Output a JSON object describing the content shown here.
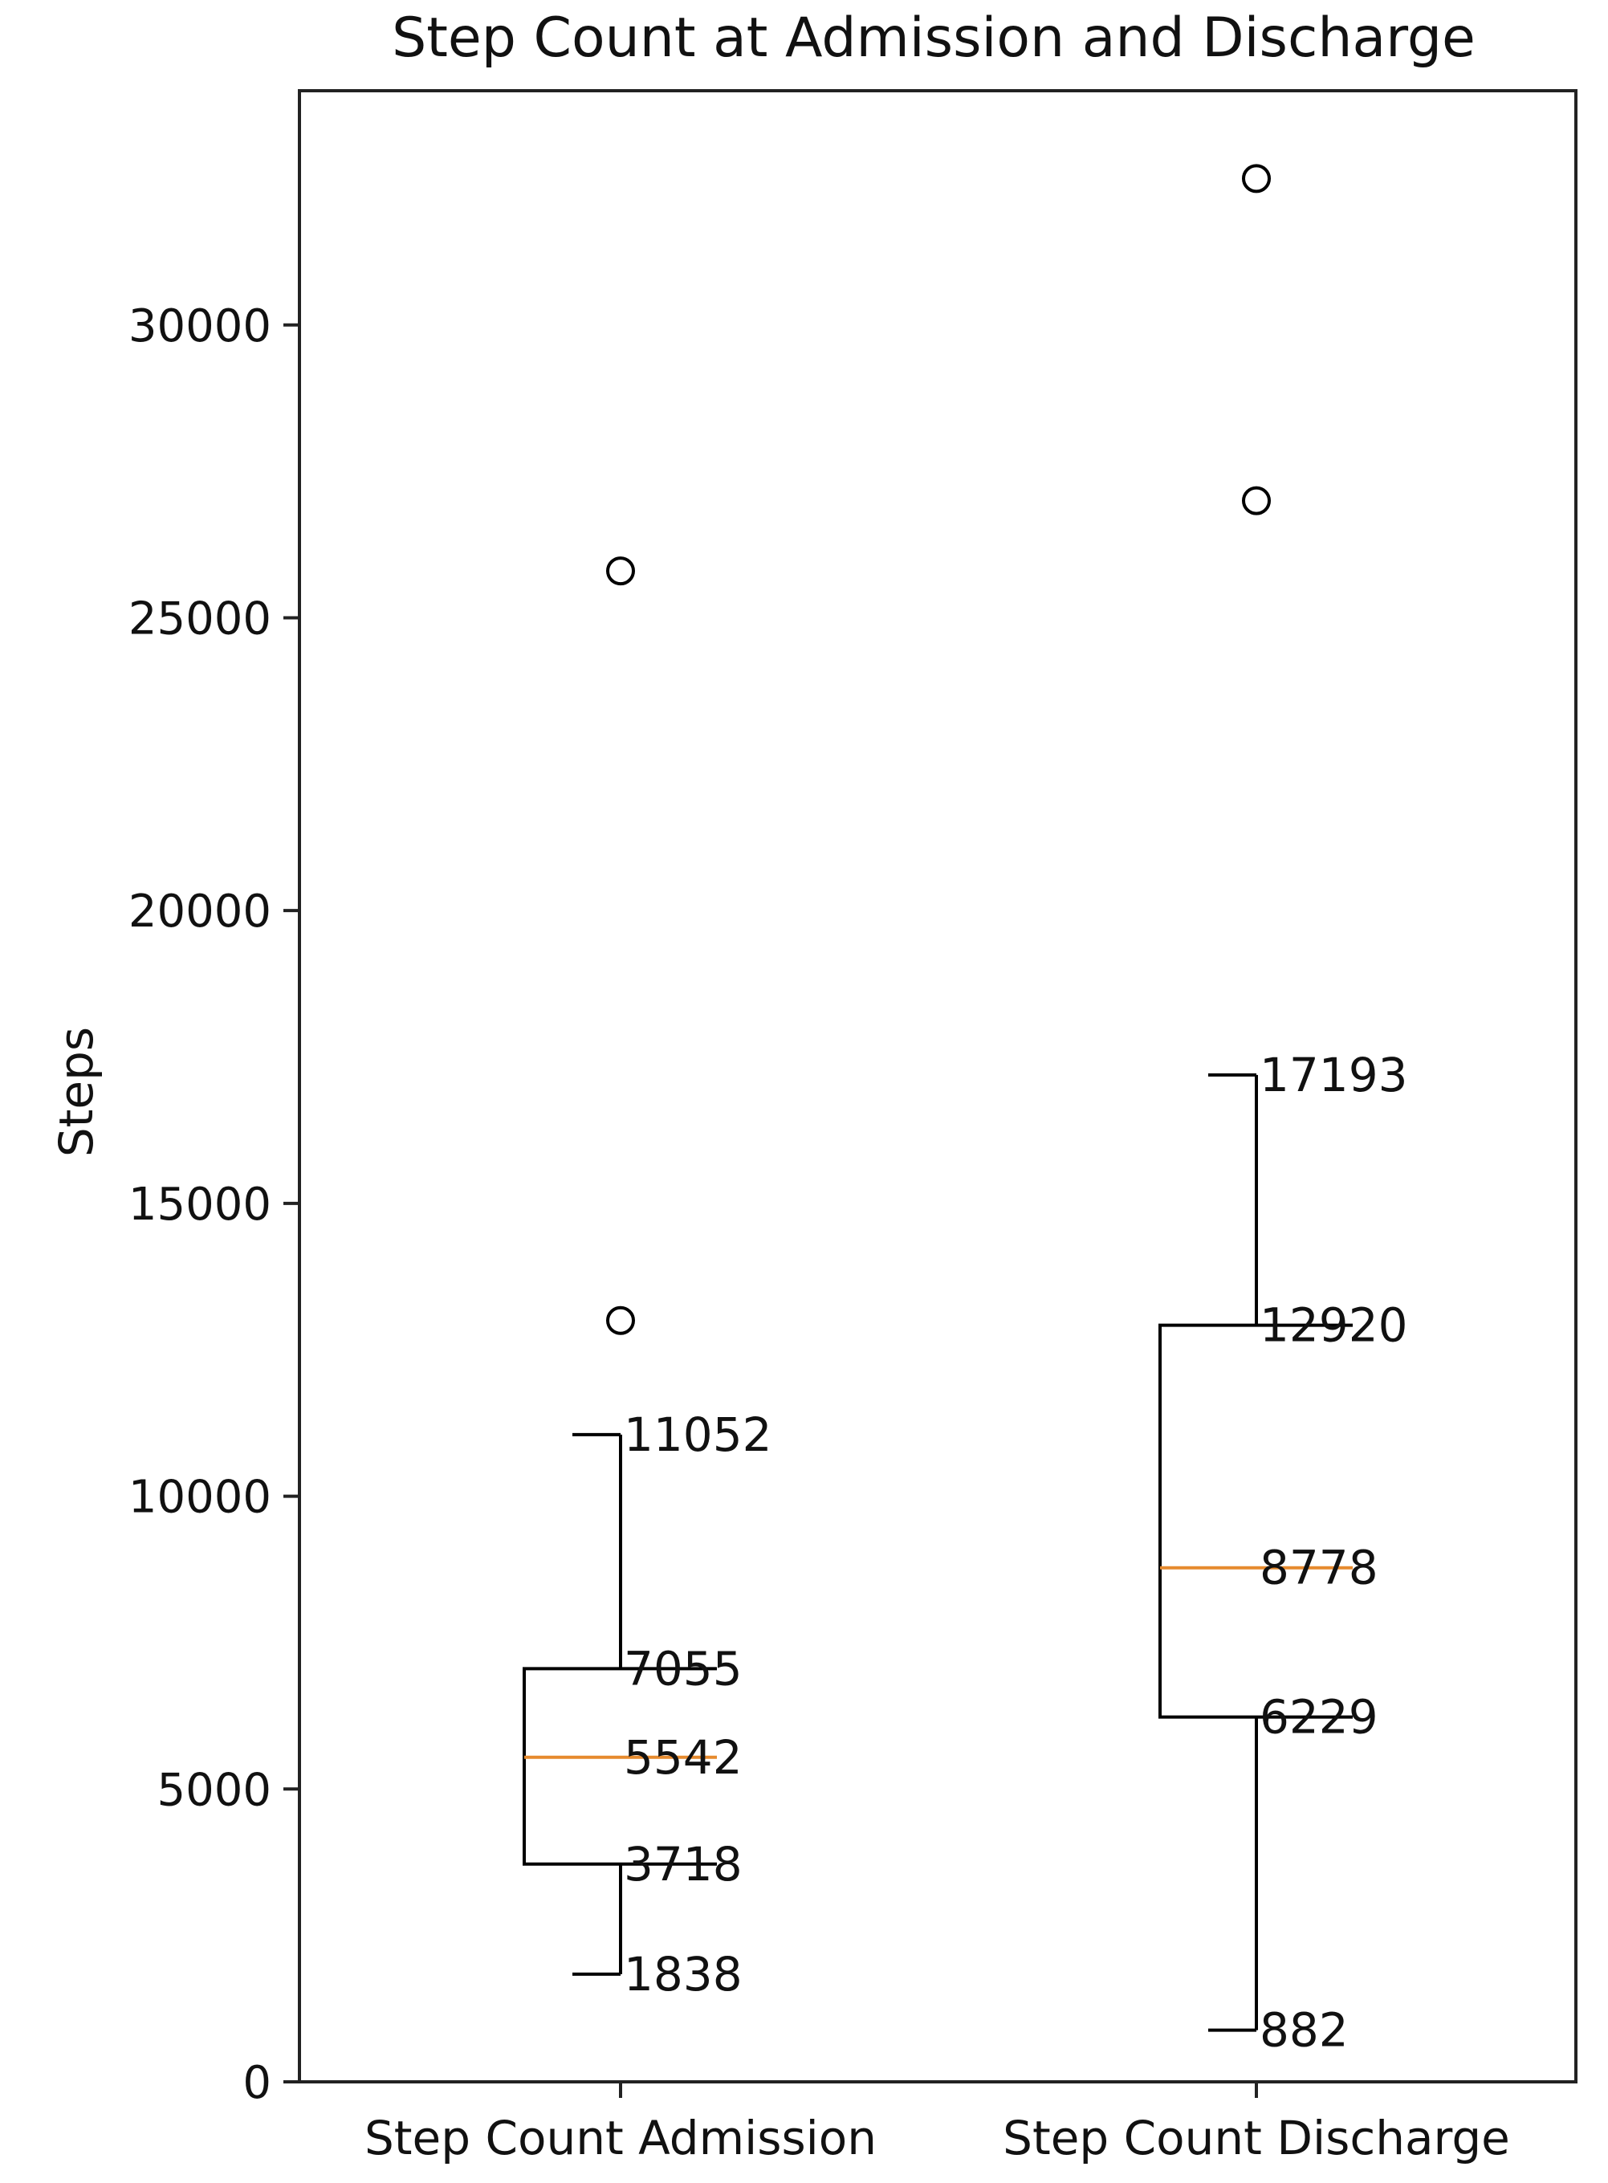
{
  "chart_data": {
    "type": "box",
    "title": "Step Count at Admission and Discharge",
    "xlabel": "",
    "ylabel": "Steps",
    "ylim": [
      0,
      34000
    ],
    "yticks": [
      0,
      5000,
      10000,
      15000,
      20000,
      25000,
      30000
    ],
    "ytick_labels": [
      "0",
      "5000",
      "10000",
      "15000",
      "20000",
      "25000",
      "30000"
    ],
    "categories": [
      "Step Count Admission",
      "Step Count Discharge"
    ],
    "grid": false,
    "colors": {
      "box": "#000000",
      "median": "#e68a2e",
      "flier": "#000000",
      "axes": "#222222"
    },
    "boxes": [
      {
        "whislo": 1838,
        "q1": 3718,
        "med": 5542,
        "q3": 7055,
        "whishi": 11052,
        "fliers": [
          13000,
          25800
        ],
        "labels": [
          "1838",
          "3718",
          "5542",
          "7055",
          "11052"
        ]
      },
      {
        "whislo": 882,
        "q1": 6229,
        "med": 8778,
        "q3": 12920,
        "whishi": 17193,
        "fliers": [
          27000,
          32500
        ],
        "labels": [
          "882",
          "6229",
          "8778",
          "12920",
          "17193"
        ]
      }
    ]
  }
}
